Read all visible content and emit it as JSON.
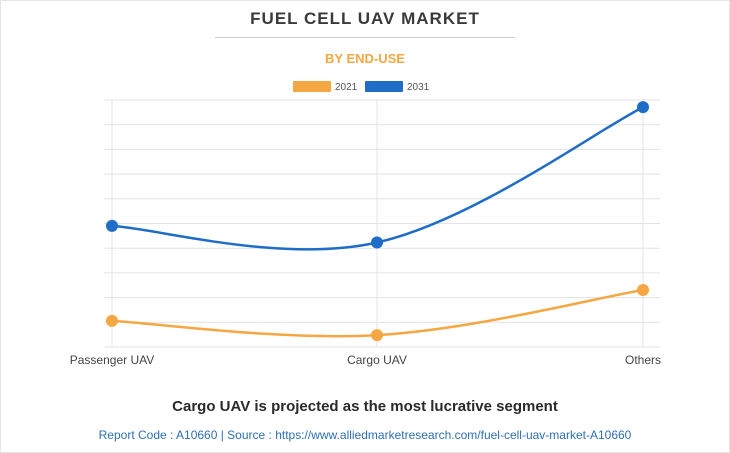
{
  "header": {
    "title": "FUEL CELL UAV MARKET",
    "subtitle": "BY END-USE"
  },
  "colors": {
    "series_2021": "#f4a742",
    "series_2031": "#1f6dc6",
    "grid": "#e3e3e3",
    "axis_text": "#444444"
  },
  "chart_data": {
    "type": "line",
    "categories": [
      "Passenger UAV",
      "Cargo UAV",
      "Others"
    ],
    "series": [
      {
        "name": "2021",
        "values": [
          11,
          5,
          24
        ]
      },
      {
        "name": "2031",
        "values": [
          51,
          44,
          101
        ]
      }
    ],
    "ylim": [
      0,
      104
    ],
    "grid": true,
    "smooth": true,
    "legend": "top-center",
    "y_tick_labels_shown": false
  },
  "footer": {
    "headline": "Cargo UAV is projected as the most lucrative segment",
    "source": "Report Code : A10660  |  Source : https://www.alliedmarketresearch.com/fuel-cell-uav-market-A10660"
  }
}
